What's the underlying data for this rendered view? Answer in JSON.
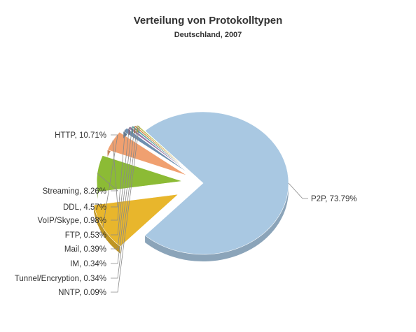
{
  "chart_data": {
    "type": "pie",
    "title": "Verteilung von Protokolltypen",
    "subtitle": "Deutschland, 2007",
    "series": [
      {
        "name": "P2P",
        "value": 73.79,
        "label": "P2P, 73.79%",
        "color": "#a9c8e2"
      },
      {
        "name": "HTTP",
        "value": 10.71,
        "label": "HTTP, 10.71%",
        "color": "#e8b62c"
      },
      {
        "name": "Streaming",
        "value": 8.26,
        "label": "Streaming, 8.26%",
        "color": "#8cbb35"
      },
      {
        "name": "DDL",
        "value": 4.57,
        "label": "DDL, 4.57%",
        "color": "#f0a070"
      },
      {
        "name": "VoIP/Skype",
        "value": 0.98,
        "label": "VoIP/Skype, 0.98%",
        "color": "#6f8fb0"
      },
      {
        "name": "FTP",
        "value": 0.53,
        "label": "FTP, 0.53%",
        "color": "#9a7aa8"
      },
      {
        "name": "Mail",
        "value": 0.39,
        "label": "Mail, 0.39%",
        "color": "#5aa3a0"
      },
      {
        "name": "IM",
        "value": 0.34,
        "label": "IM, 0.34%",
        "color": "#d48a4a"
      },
      {
        "name": "Tunnel/Encryption",
        "value": 0.34,
        "label": "Tunnel/Encryption, 0.34%",
        "color": "#c0c050"
      },
      {
        "name": "NNTP",
        "value": 0.09,
        "label": "NNTP, 0.09%",
        "color": "#1f6f80"
      }
    ]
  }
}
